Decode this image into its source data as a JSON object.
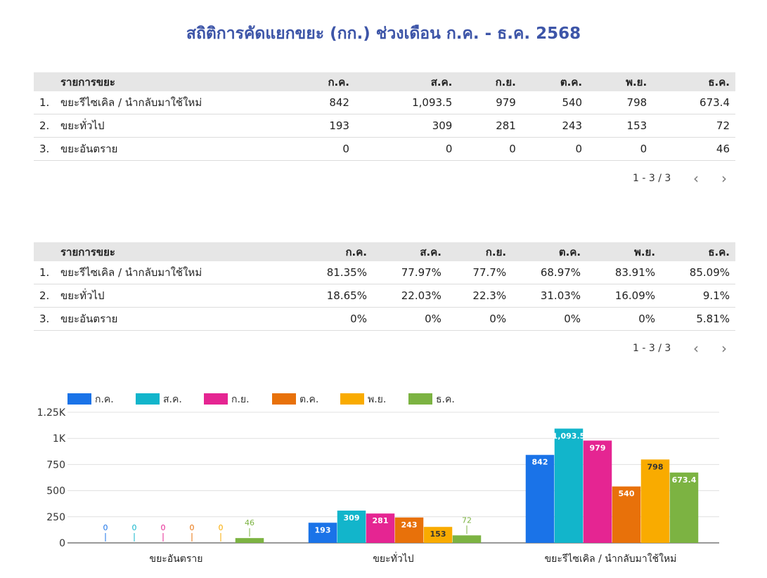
{
  "title": "สถิติการคัดแยกขยะ (กก.) ช่วงเดือน ก.ค. - ธ.ค. 2568",
  "table1": {
    "header": "รายการขยะ",
    "columns": [
      "ก.ค.",
      "ส.ค.",
      "ก.ย.",
      "ต.ค.",
      "พ.ย.",
      "ธ.ค."
    ],
    "rows": [
      {
        "idx": "1.",
        "label": "ขยะรีไซเคิล / นำกลับมาใช้ใหม่",
        "values": [
          "842",
          "1,093.5",
          "979",
          "540",
          "798",
          "673.4"
        ]
      },
      {
        "idx": "2.",
        "label": "ขยะทั่วไป",
        "values": [
          "193",
          "309",
          "281",
          "243",
          "153",
          "72"
        ]
      },
      {
        "idx": "3.",
        "label": "ขยะอันตราย",
        "values": [
          "0",
          "0",
          "0",
          "0",
          "0",
          "46"
        ]
      }
    ],
    "pager": {
      "text": "1 - 3 / 3",
      "prev": "‹",
      "next": "›"
    }
  },
  "table2": {
    "header": "รายการขยะ",
    "columns": [
      "ก.ค.",
      "ส.ค.",
      "ก.ย.",
      "ต.ค.",
      "พ.ย.",
      "ธ.ค."
    ],
    "rows": [
      {
        "idx": "1.",
        "label": "ขยะรีไซเคิล / นำกลับมาใช้ใหม่",
        "values": [
          "81.35%",
          "77.97%",
          "77.7%",
          "68.97%",
          "83.91%",
          "85.09%"
        ]
      },
      {
        "idx": "2.",
        "label": "ขยะทั่วไป",
        "values": [
          "18.65%",
          "22.03%",
          "22.3%",
          "31.03%",
          "16.09%",
          "9.1%"
        ]
      },
      {
        "idx": "3.",
        "label": "ขยะอันตราย",
        "values": [
          "0%",
          "0%",
          "0%",
          "0%",
          "0%",
          "5.81%"
        ]
      }
    ],
    "pager": {
      "text": "1 - 3 / 3",
      "prev": "‹",
      "next": "›"
    }
  },
  "chart_data": {
    "type": "bar",
    "categories": [
      "ขยะอันตราย",
      "ขยะทั่วไป",
      "ขยะรีไซเคิล / นำกลับมาใช้ใหม่"
    ],
    "series": [
      {
        "name": "ก.ค.",
        "color": "#1a73e8",
        "values": [
          0,
          193,
          842
        ],
        "labels": [
          "0",
          "193",
          "842"
        ]
      },
      {
        "name": "ส.ค.",
        "color": "#12b5cb",
        "values": [
          0,
          309,
          1093.5
        ],
        "labels": [
          "0",
          "309",
          "1,093.5"
        ]
      },
      {
        "name": "ก.ย.",
        "color": "#e52592",
        "values": [
          0,
          281,
          979
        ],
        "labels": [
          "0",
          "281",
          "979"
        ]
      },
      {
        "name": "ต.ค.",
        "color": "#e8710a",
        "values": [
          0,
          243,
          540
        ],
        "labels": [
          "0",
          "243",
          "540"
        ]
      },
      {
        "name": "พ.ย.",
        "color": "#f9ab00",
        "values": [
          0,
          153,
          798
        ],
        "labels": [
          "0",
          "153",
          "798"
        ]
      },
      {
        "name": "ธ.ค.",
        "color": "#7cb342",
        "values": [
          46,
          72,
          673.4
        ],
        "labels": [
          "46",
          "72",
          "673.4"
        ]
      }
    ],
    "yticks": [
      {
        "value": 0,
        "label": "0"
      },
      {
        "value": 250,
        "label": "250"
      },
      {
        "value": 500,
        "label": "500"
      },
      {
        "value": 750,
        "label": "750"
      },
      {
        "value": 1000,
        "label": "1K"
      },
      {
        "value": 1250,
        "label": "1.25K"
      }
    ],
    "ylim": [
      0,
      1250
    ],
    "grid": true,
    "legend": "top-left",
    "xlabel": "",
    "ylabel": ""
  }
}
